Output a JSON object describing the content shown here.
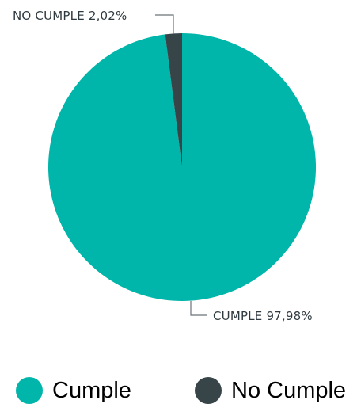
{
  "chart_data": {
    "type": "pie",
    "slices": [
      {
        "name": "Cumple",
        "value": 97.98,
        "label": "CUMPLE 97,98%",
        "color": "#00B5A9"
      },
      {
        "name": "No Cumple",
        "value": 2.02,
        "label": "NO CUMPLE 2,02%",
        "color": "#374549"
      }
    ],
    "legend": {
      "placement": "bottom",
      "items": [
        {
          "label": "Cumple",
          "color": "#00B5A9"
        },
        {
          "label": "No Cumple",
          "color": "#374549"
        }
      ]
    },
    "start_angle_deg": 0,
    "direction": "clockwise"
  }
}
